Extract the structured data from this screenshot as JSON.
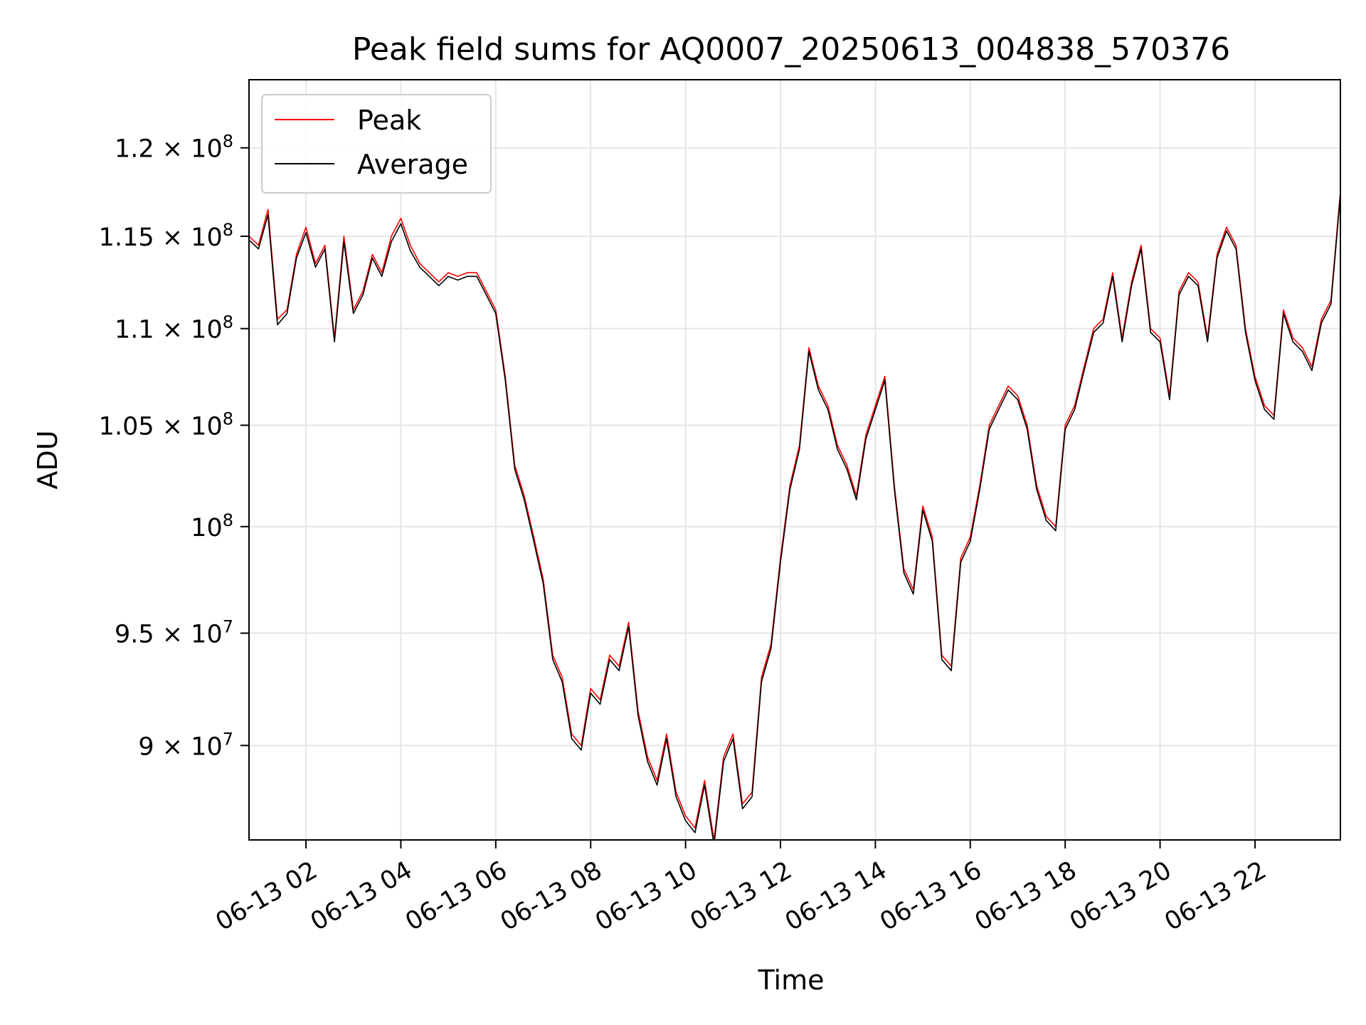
{
  "chart_data": {
    "type": "line",
    "title": "Peak field sums for AQ0007_20250613_004838_570376",
    "xlabel": "Time",
    "ylabel": "ADU",
    "xlim": [
      "06-13 00:48",
      "06-13 23:48"
    ],
    "ylim": [
      86000000,
      124000000
    ],
    "y_scale": "log",
    "grid": true,
    "legend_position": "upper left",
    "x_ticks": [
      "06-13 02",
      "06-13 04",
      "06-13 06",
      "06-13 08",
      "06-13 10",
      "06-13 12",
      "06-13 14",
      "06-13 16",
      "06-13 18",
      "06-13 20",
      "06-13 22"
    ],
    "y_ticks": [
      {
        "value": 90000000,
        "mantissa": "9",
        "exp": "7"
      },
      {
        "value": 95000000,
        "mantissa": "9.5",
        "exp": "7"
      },
      {
        "value": 100000000,
        "mantissa": "",
        "exp": "8"
      },
      {
        "value": 105000000,
        "mantissa": "1.05",
        "exp": "8"
      },
      {
        "value": 110000000,
        "mantissa": "1.1",
        "exp": "8"
      },
      {
        "value": 115000000,
        "mantissa": "1.15",
        "exp": "8"
      },
      {
        "value": 120000000,
        "mantissa": "1.2",
        "exp": "8"
      }
    ],
    "x": [
      "06-13 00:48",
      "06-13 01:00",
      "06-13 01:12",
      "06-13 01:24",
      "06-13 01:36",
      "06-13 01:48",
      "06-13 02:00",
      "06-13 02:12",
      "06-13 02:24",
      "06-13 02:36",
      "06-13 02:48",
      "06-13 03:00",
      "06-13 03:12",
      "06-13 03:24",
      "06-13 03:36",
      "06-13 03:48",
      "06-13 04:00",
      "06-13 04:12",
      "06-13 04:24",
      "06-13 04:36",
      "06-13 04:48",
      "06-13 05:00",
      "06-13 05:12",
      "06-13 05:24",
      "06-13 05:36",
      "06-13 05:48",
      "06-13 06:00",
      "06-13 06:12",
      "06-13 06:24",
      "06-13 06:36",
      "06-13 06:48",
      "06-13 07:00",
      "06-13 07:12",
      "06-13 07:24",
      "06-13 07:36",
      "06-13 07:48",
      "06-13 08:00",
      "06-13 08:12",
      "06-13 08:24",
      "06-13 08:36",
      "06-13 08:48",
      "06-13 09:00",
      "06-13 09:12",
      "06-13 09:24",
      "06-13 09:36",
      "06-13 09:48",
      "06-13 10:00",
      "06-13 10:12",
      "06-13 10:24",
      "06-13 10:36",
      "06-13 10:48",
      "06-13 11:00",
      "06-13 11:12",
      "06-13 11:24",
      "06-13 11:36",
      "06-13 11:48",
      "06-13 12:00",
      "06-13 12:12",
      "06-13 12:24",
      "06-13 12:36",
      "06-13 12:48",
      "06-13 13:00",
      "06-13 13:12",
      "06-13 13:24",
      "06-13 13:36",
      "06-13 13:48",
      "06-13 14:00",
      "06-13 14:12",
      "06-13 14:24",
      "06-13 14:36",
      "06-13 14:48",
      "06-13 15:00",
      "06-13 15:12",
      "06-13 15:24",
      "06-13 15:36",
      "06-13 15:48",
      "06-13 16:00",
      "06-13 16:12",
      "06-13 16:24",
      "06-13 16:36",
      "06-13 16:48",
      "06-13 17:00",
      "06-13 17:12",
      "06-13 17:24",
      "06-13 17:36",
      "06-13 17:48",
      "06-13 18:00",
      "06-13 18:12",
      "06-13 18:24",
      "06-13 18:36",
      "06-13 18:48",
      "06-13 19:00",
      "06-13 19:12",
      "06-13 19:24",
      "06-13 19:36",
      "06-13 19:48",
      "06-13 20:00",
      "06-13 20:12",
      "06-13 20:24",
      "06-13 20:36",
      "06-13 20:48",
      "06-13 21:00",
      "06-13 21:12",
      "06-13 21:24",
      "06-13 21:36",
      "06-13 21:48",
      "06-13 22:00",
      "06-13 22:12",
      "06-13 22:24",
      "06-13 22:36",
      "06-13 22:48",
      "06-13 23:00",
      "06-13 23:12",
      "06-13 23:24",
      "06-13 23:36",
      "06-13 23:48"
    ],
    "series": [
      {
        "name": "Peak",
        "color": "#ff0000",
        "values": [
          115000000,
          114500000,
          116500000,
          110500000,
          111000000,
          114000000,
          115500000,
          113500000,
          114500000,
          109500000,
          115000000,
          111000000,
          112000000,
          114000000,
          113000000,
          115000000,
          116000000,
          114500000,
          113500000,
          113000000,
          112500000,
          113000000,
          112800000,
          113000000,
          113000000,
          112000000,
          111000000,
          107500000,
          103000000,
          101500000,
          99500000,
          97500000,
          94000000,
          93000000,
          90500000,
          90000000,
          92500000,
          92000000,
          94000000,
          93500000,
          95500000,
          91500000,
          89500000,
          88500000,
          90500000,
          88000000,
          87000000,
          86500000,
          88500000,
          86000000,
          89500000,
          90500000,
          87500000,
          88000000,
          93000000,
          94500000,
          98500000,
          102000000,
          104000000,
          109000000,
          107000000,
          106000000,
          104000000,
          103000000,
          101500000,
          104500000,
          106000000,
          107500000,
          102000000,
          98000000,
          97000000,
          101000000,
          99500000,
          94000000,
          93500000,
          98500000,
          99500000,
          102000000,
          105000000,
          106000000,
          107000000,
          106500000,
          105000000,
          102000000,
          100500000,
          100000000,
          105000000,
          106000000,
          108000000,
          110000000,
          110500000,
          113000000,
          109500000,
          112500000,
          114500000,
          110000000,
          109500000,
          106500000,
          112000000,
          113000000,
          112500000,
          109500000,
          114000000,
          115500000,
          114500000,
          110000000,
          107500000,
          106000000,
          105500000,
          111000000,
          109500000,
          109000000,
          108000000,
          110500000,
          111500000,
          117500000
        ]
      },
      {
        "name": "Average",
        "color": "#000000",
        "values": [
          114800000,
          114300000,
          116200000,
          110200000,
          110800000,
          113800000,
          115200000,
          113300000,
          114300000,
          109300000,
          114700000,
          110800000,
          111800000,
          113800000,
          112800000,
          114700000,
          115700000,
          114200000,
          113300000,
          112800000,
          112300000,
          112800000,
          112600000,
          112800000,
          112800000,
          111800000,
          110800000,
          107300000,
          102800000,
          101300000,
          99300000,
          97300000,
          93800000,
          92800000,
          90300000,
          89800000,
          92300000,
          91800000,
          93800000,
          93300000,
          95300000,
          91300000,
          89300000,
          88300000,
          90300000,
          87800000,
          86800000,
          86300000,
          88300000,
          85800000,
          89300000,
          90300000,
          87300000,
          87800000,
          92800000,
          94300000,
          98300000,
          101800000,
          103800000,
          108800000,
          106800000,
          105800000,
          103800000,
          102800000,
          101300000,
          104300000,
          105800000,
          107300000,
          101800000,
          97800000,
          96800000,
          100800000,
          99300000,
          93800000,
          93300000,
          98300000,
          99300000,
          101800000,
          104800000,
          105800000,
          106800000,
          106300000,
          104800000,
          101800000,
          100300000,
          99800000,
          104800000,
          105800000,
          107800000,
          109800000,
          110300000,
          112800000,
          109300000,
          112300000,
          114300000,
          109800000,
          109300000,
          106300000,
          111800000,
          112800000,
          112300000,
          109300000,
          113800000,
          115300000,
          114300000,
          109800000,
          107300000,
          105800000,
          105300000,
          110800000,
          109300000,
          108800000,
          107800000,
          110300000,
          111300000,
          117300000
        ]
      }
    ]
  }
}
